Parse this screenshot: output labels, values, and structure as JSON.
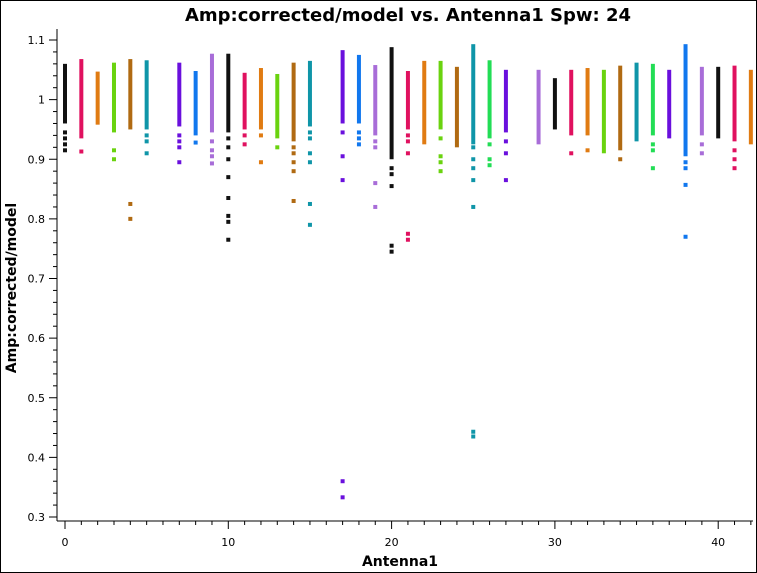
{
  "chart_data": {
    "type": "scatter",
    "title": "Amp:corrected/model vs. Antenna1 Spw: 24",
    "xlabel": "Antenna1",
    "ylabel": "Amp:corrected/model",
    "xlim": [
      -0.5,
      42
    ],
    "ylim": [
      0.29,
      1.11
    ],
    "x_ticks": [
      0,
      10,
      20,
      30,
      40
    ],
    "y_ticks": [
      0.3,
      0.4,
      0.5,
      0.6,
      0.7,
      0.8,
      0.9,
      1,
      1.1
    ],
    "x_tick_labels": [
      "0",
      "10",
      "20",
      "30",
      "40"
    ],
    "y_tick_labels": [
      "0.3",
      "0.4",
      "0.5",
      "0.6",
      "0.7",
      "0.8",
      "0.9",
      "1",
      "1.1"
    ],
    "grid": false,
    "legend": "none",
    "series": [
      {
        "antenna": 0,
        "color": "#111111",
        "bar": [
          0.96,
          1.06
        ],
        "points": [
          0.945,
          0.935,
          0.925,
          0.915
        ]
      },
      {
        "antenna": 1,
        "color": "#e0115f",
        "bar": [
          0.935,
          1.068
        ],
        "points": [
          0.913
        ]
      },
      {
        "antenna": 2,
        "color": "#e07b12",
        "bar": [
          0.958,
          1.047
        ],
        "points": []
      },
      {
        "antenna": 3,
        "color": "#6ad30f",
        "bar": [
          0.945,
          1.062
        ],
        "points": [
          0.915,
          0.9
        ]
      },
      {
        "antenna": 4,
        "color": "#b06a12",
        "bar": [
          0.95,
          1.068
        ],
        "points": [
          0.825,
          0.8
        ]
      },
      {
        "antenna": 5,
        "color": "#0f95a8",
        "bar": [
          0.95,
          1.066
        ],
        "points": [
          0.94,
          0.93,
          0.91
        ]
      },
      {
        "antenna": 7,
        "color": "#6a10dd",
        "bar": [
          0.955,
          1.062
        ],
        "points": [
          0.94,
          0.93,
          0.92,
          0.895
        ]
      },
      {
        "antenna": 8,
        "color": "#1177ee",
        "bar": [
          0.94,
          1.048
        ],
        "points": [
          0.928
        ]
      },
      {
        "antenna": 9,
        "color": "#a86dd8",
        "bar": [
          0.945,
          1.077
        ],
        "points": [
          0.93,
          0.915,
          0.905,
          0.893
        ]
      },
      {
        "antenna": 10,
        "color": "#111111",
        "bar": [
          0.945,
          1.077
        ],
        "points": [
          0.935,
          0.92,
          0.9,
          0.87,
          0.835,
          0.805,
          0.795,
          0.765
        ]
      },
      {
        "antenna": 11,
        "color": "#e0115f",
        "bar": [
          0.95,
          1.045
        ],
        "points": [
          0.94,
          0.925
        ]
      },
      {
        "antenna": 12,
        "color": "#e07b12",
        "bar": [
          0.95,
          1.053
        ],
        "points": [
          0.94,
          0.895
        ]
      },
      {
        "antenna": 13,
        "color": "#6ad30f",
        "bar": [
          0.935,
          1.043
        ],
        "points": [
          0.92
        ]
      },
      {
        "antenna": 14,
        "color": "#b06a12",
        "bar": [
          0.93,
          1.062
        ],
        "points": [
          0.92,
          0.91,
          0.895,
          0.88,
          0.83
        ]
      },
      {
        "antenna": 15,
        "color": "#0f95a8",
        "bar": [
          0.955,
          1.065
        ],
        "points": [
          0.945,
          0.935,
          0.91,
          0.895,
          0.825,
          0.79
        ]
      },
      {
        "antenna": 17,
        "color": "#6a10dd",
        "bar": [
          0.96,
          1.083
        ],
        "points": [
          0.945,
          0.905,
          0.865,
          0.36,
          0.333
        ]
      },
      {
        "antenna": 18,
        "color": "#1177ee",
        "bar": [
          0.96,
          1.075
        ],
        "points": [
          0.945,
          0.935,
          0.925
        ]
      },
      {
        "antenna": 19,
        "color": "#a86dd8",
        "bar": [
          0.94,
          1.058
        ],
        "points": [
          0.93,
          0.92,
          0.86,
          0.82
        ]
      },
      {
        "antenna": 20,
        "color": "#111111",
        "bar": [
          0.9,
          1.088
        ],
        "points": [
          0.885,
          0.875,
          0.855,
          0.755,
          0.745
        ]
      },
      {
        "antenna": 21,
        "color": "#e0115f",
        "bar": [
          0.95,
          1.048
        ],
        "points": [
          0.94,
          0.93,
          0.91,
          0.775,
          0.765
        ]
      },
      {
        "antenna": 22,
        "color": "#e07b12",
        "bar": [
          0.925,
          1.065
        ],
        "points": []
      },
      {
        "antenna": 23,
        "color": "#6ad30f",
        "bar": [
          0.95,
          1.065
        ],
        "points": [
          0.935,
          0.905,
          0.895,
          0.88
        ]
      },
      {
        "antenna": 24,
        "color": "#b06a12",
        "bar": [
          0.92,
          1.055
        ],
        "points": []
      },
      {
        "antenna": 25,
        "color": "#0f95a8",
        "bar": [
          0.925,
          1.093
        ],
        "points": [
          0.92,
          0.9,
          0.885,
          0.865,
          0.82,
          0.443,
          0.435
        ]
      },
      {
        "antenna": 26,
        "color": "#22dd55",
        "bar": [
          0.935,
          1.066
        ],
        "points": [
          0.925,
          0.9,
          0.89
        ]
      },
      {
        "antenna": 27,
        "color": "#6a10dd",
        "bar": [
          0.945,
          1.05
        ],
        "points": [
          0.93,
          0.91,
          0.865
        ]
      },
      {
        "antenna": 29,
        "color": "#a86dd8",
        "bar": [
          0.925,
          1.05
        ],
        "points": []
      },
      {
        "antenna": 30,
        "color": "#111111",
        "bar": [
          0.95,
          1.036
        ],
        "points": []
      },
      {
        "antenna": 31,
        "color": "#e0115f",
        "bar": [
          0.94,
          1.05
        ],
        "points": [
          0.91
        ]
      },
      {
        "antenna": 32,
        "color": "#e07b12",
        "bar": [
          0.94,
          1.053
        ],
        "points": [
          0.915
        ]
      },
      {
        "antenna": 33,
        "color": "#6ad30f",
        "bar": [
          0.91,
          1.05
        ],
        "points": []
      },
      {
        "antenna": 34,
        "color": "#b06a12",
        "bar": [
          0.915,
          1.057
        ],
        "points": [
          0.9
        ]
      },
      {
        "antenna": 35,
        "color": "#0f95a8",
        "bar": [
          0.93,
          1.062
        ],
        "points": []
      },
      {
        "antenna": 36,
        "color": "#22dd55",
        "bar": [
          0.94,
          1.06
        ],
        "points": [
          0.925,
          0.915,
          0.885
        ]
      },
      {
        "antenna": 37,
        "color": "#6a10dd",
        "bar": [
          0.935,
          1.05
        ],
        "points": []
      },
      {
        "antenna": 38,
        "color": "#1177ee",
        "bar": [
          0.905,
          1.093
        ],
        "points": [
          0.895,
          0.885,
          0.857,
          0.77
        ]
      },
      {
        "antenna": 39,
        "color": "#a86dd8",
        "bar": [
          0.94,
          1.055
        ],
        "points": [
          0.925,
          0.91
        ]
      },
      {
        "antenna": 40,
        "color": "#111111",
        "bar": [
          0.935,
          1.055
        ],
        "points": []
      },
      {
        "antenna": 41,
        "color": "#e0115f",
        "bar": [
          0.93,
          1.057
        ],
        "points": [
          0.915,
          0.9,
          0.885
        ]
      },
      {
        "antenna": 42,
        "color": "#e07b12",
        "bar": [
          0.925,
          1.05
        ],
        "points": []
      }
    ]
  }
}
